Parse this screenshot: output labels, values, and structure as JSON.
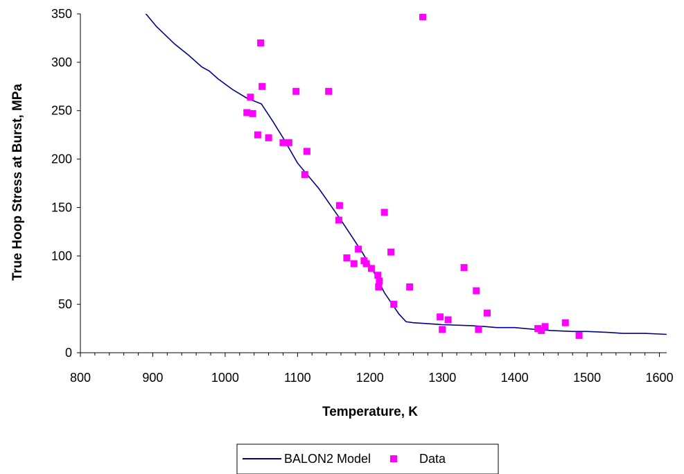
{
  "chart_data": {
    "type": "scatter",
    "title": "",
    "xlabel": "Temperature, K",
    "ylabel": "True Hoop Stress at Burst, MPa",
    "xlim": [
      800,
      1610
    ],
    "ylim": [
      0,
      350
    ],
    "xticks": [
      "800",
      "900",
      "1000",
      "1100",
      "1200",
      "1300",
      "1400",
      "1500",
      "1600"
    ],
    "yticks": [
      "0",
      "50",
      "100",
      "150",
      "200",
      "250",
      "300",
      "350"
    ],
    "grid": false,
    "legend_position": "bottom",
    "series": [
      {
        "name": "BALON2 Model",
        "kind": "line",
        "color": "#000080",
        "points": [
          [
            885,
            355
          ],
          [
            905,
            337
          ],
          [
            930,
            319
          ],
          [
            950,
            307
          ],
          [
            968,
            295
          ],
          [
            978,
            291
          ],
          [
            990,
            283
          ],
          [
            1010,
            272
          ],
          [
            1030,
            263
          ],
          [
            1050,
            257
          ],
          [
            1065,
            240
          ],
          [
            1080,
            222
          ],
          [
            1100,
            196
          ],
          [
            1120,
            178
          ],
          [
            1130,
            169
          ],
          [
            1145,
            153
          ],
          [
            1160,
            137
          ],
          [
            1175,
            120
          ],
          [
            1190,
            103
          ],
          [
            1205,
            84
          ],
          [
            1220,
            62
          ],
          [
            1240,
            40
          ],
          [
            1250,
            32
          ],
          [
            1260,
            31
          ],
          [
            1280,
            30
          ],
          [
            1300,
            29
          ],
          [
            1340,
            28
          ],
          [
            1360,
            27
          ],
          [
            1375,
            26
          ],
          [
            1400,
            26
          ],
          [
            1430,
            24
          ],
          [
            1450,
            23
          ],
          [
            1480,
            22
          ],
          [
            1500,
            22
          ],
          [
            1530,
            21
          ],
          [
            1550,
            20
          ],
          [
            1580,
            20
          ],
          [
            1610,
            19
          ]
        ]
      },
      {
        "name": "Data",
        "kind": "scatter",
        "color": "#ff00ff",
        "points": [
          [
            1030,
            248
          ],
          [
            1035,
            264
          ],
          [
            1038,
            247
          ],
          [
            1045,
            225
          ],
          [
            1049,
            320
          ],
          [
            1051,
            275
          ],
          [
            1060,
            222
          ],
          [
            1080,
            217
          ],
          [
            1088,
            217
          ],
          [
            1098,
            270
          ],
          [
            1110,
            184
          ],
          [
            1113,
            208
          ],
          [
            1143,
            270
          ],
          [
            1157,
            137
          ],
          [
            1158,
            152
          ],
          [
            1168,
            98
          ],
          [
            1178,
            92
          ],
          [
            1184,
            107
          ],
          [
            1192,
            95
          ],
          [
            1195,
            92
          ],
          [
            1202,
            87
          ],
          [
            1211,
            80
          ],
          [
            1212,
            68
          ],
          [
            1213,
            74
          ],
          [
            1220,
            145
          ],
          [
            1229,
            104
          ],
          [
            1233,
            50
          ],
          [
            1255,
            68
          ],
          [
            1273,
            347
          ],
          [
            1297,
            37
          ],
          [
            1300,
            24
          ],
          [
            1308,
            34
          ],
          [
            1330,
            88
          ],
          [
            1347,
            64
          ],
          [
            1350,
            24
          ],
          [
            1362,
            41
          ],
          [
            1432,
            25
          ],
          [
            1437,
            23
          ],
          [
            1442,
            27
          ],
          [
            1470,
            31
          ],
          [
            1489,
            18
          ]
        ]
      }
    ]
  }
}
